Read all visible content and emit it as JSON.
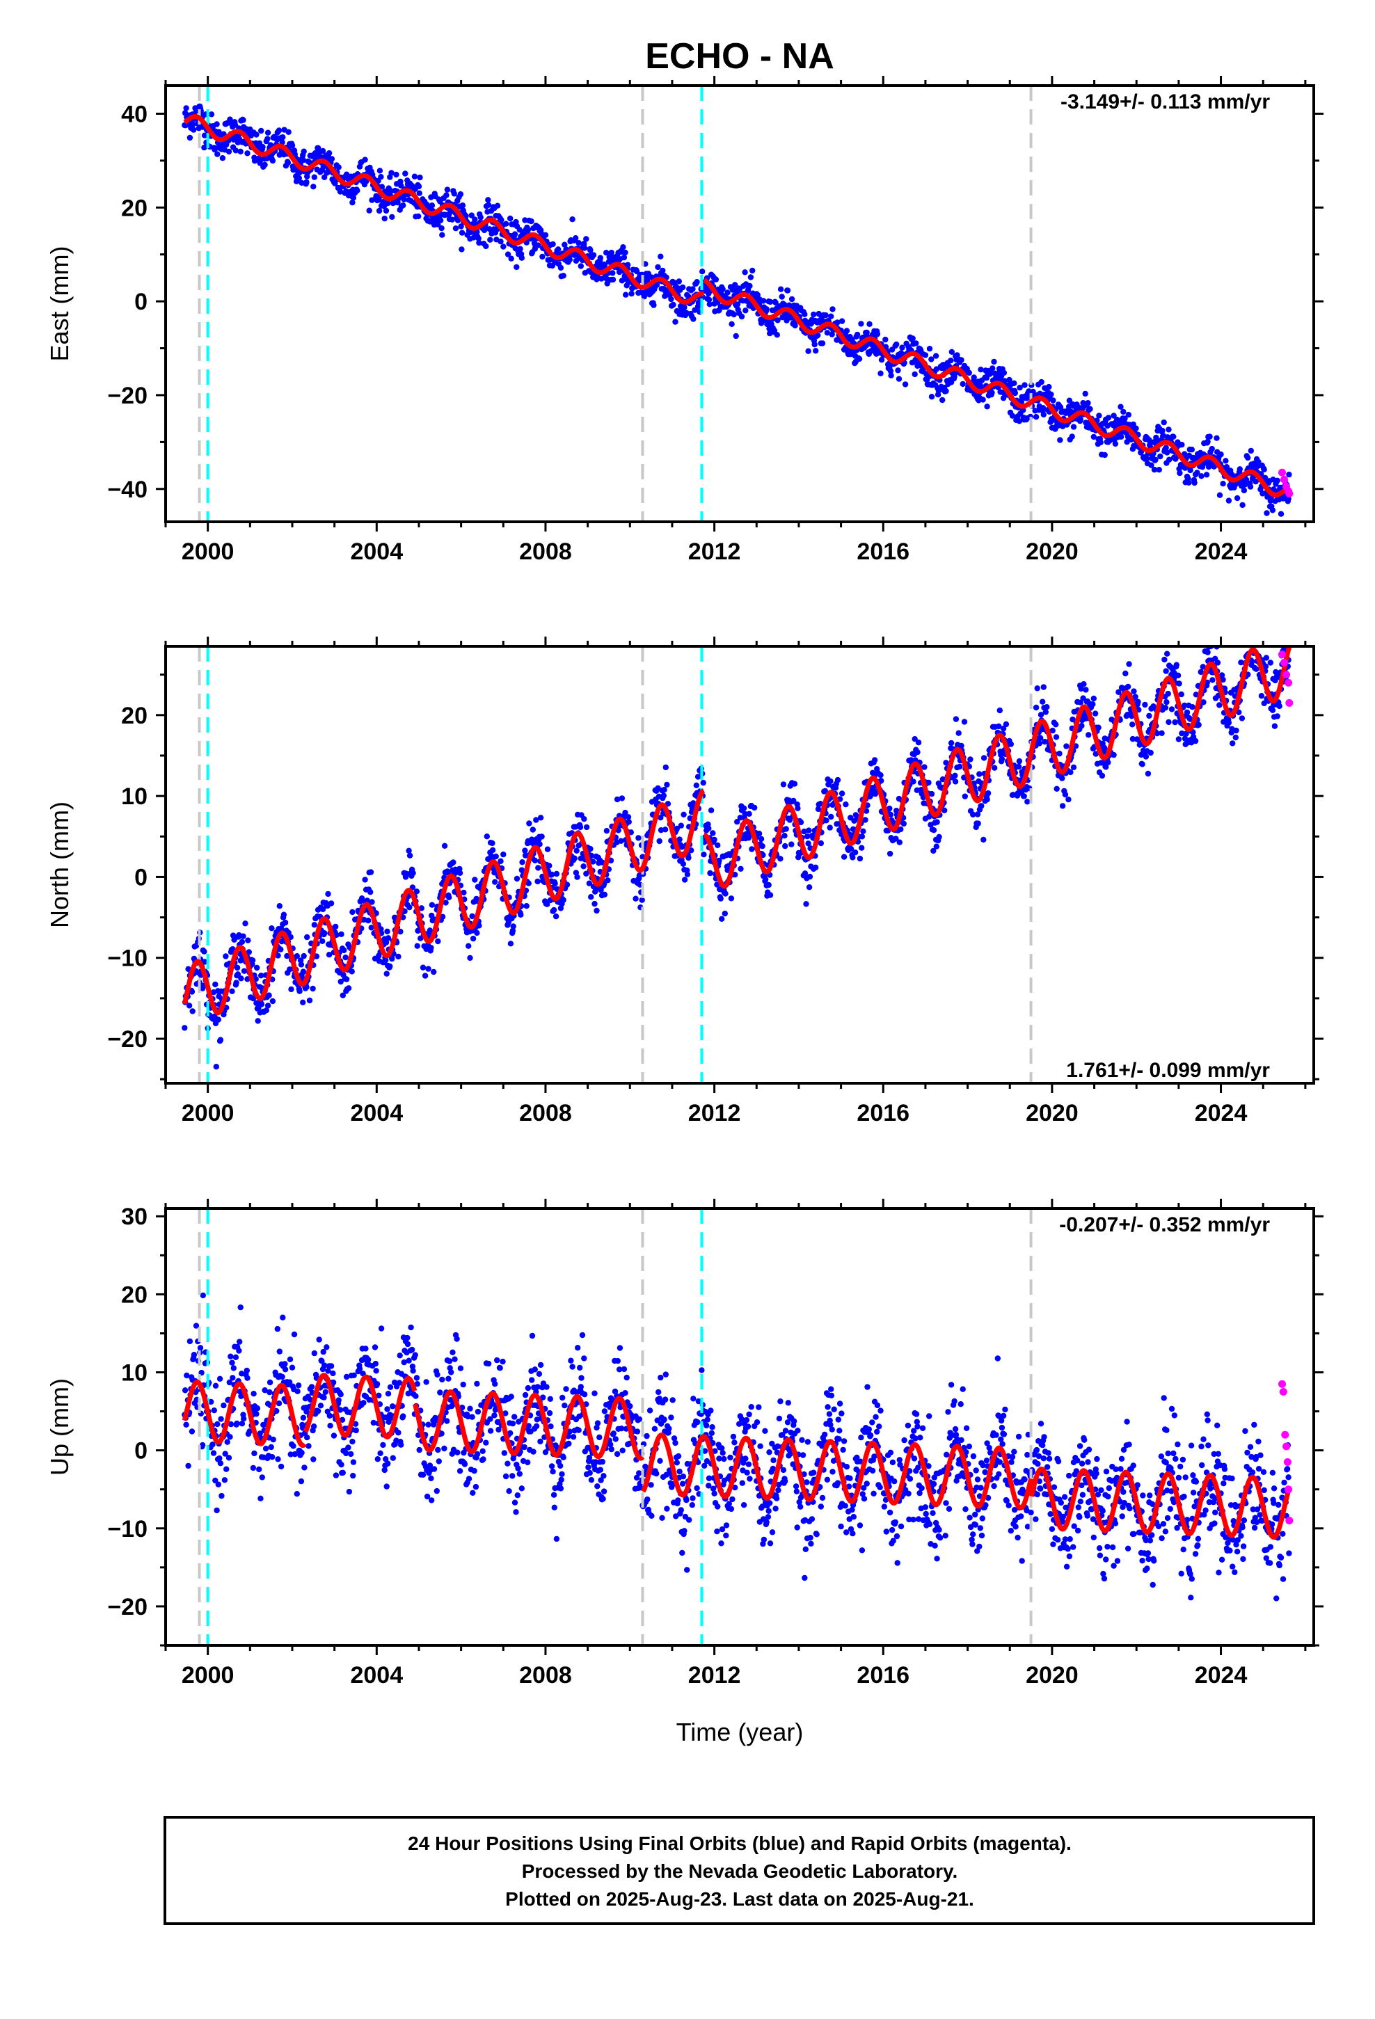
{
  "title": "ECHO - NA",
  "xlabel": "Time (year)",
  "footer": {
    "line1": "24 Hour Positions Using Final Orbits (blue) and Rapid Orbits (magenta).",
    "line2": "Processed by the Nevada Geodetic Laboratory.",
    "line3": "Plotted on 2025-Aug-23. Last data on 2025-Aug-21."
  },
  "colors": {
    "final": "#0000ff",
    "rapid": "#ff00ff",
    "model": "#ff0000",
    "equipment_change": "#c8c8c8",
    "earthquake": "#00ffff"
  },
  "chart_data": [
    {
      "type": "scatter",
      "ylabel": "East (mm)",
      "rate_text": "-3.149+/- 0.113 mm/yr",
      "xlim": [
        1999.0,
        2026.2
      ],
      "ylim": [
        -47,
        46
      ],
      "xticks": [
        2000,
        2004,
        2008,
        2012,
        2016,
        2020,
        2024
      ],
      "yticks": [
        40,
        20,
        0,
        -20,
        -40
      ],
      "trend": {
        "start_year": 1999.5,
        "start_value": 38.5,
        "rate": -3.149,
        "seasonal_amplitude": 1.6,
        "offsets": [
          {
            "year": 2011.75,
            "value": 3.0
          }
        ]
      },
      "scatter_spread": 2.0,
      "gray_lines": [
        1999.8,
        2010.3,
        2019.5
      ],
      "cyan_lines": [
        2000.0,
        2011.7
      ],
      "rapid_points": [
        [
          2025.45,
          -36.5
        ],
        [
          2025.5,
          -38.0
        ],
        [
          2025.55,
          -39.5
        ],
        [
          2025.6,
          -40.5
        ],
        [
          2025.62,
          -41.0
        ]
      ]
    },
    {
      "type": "scatter",
      "ylabel": "North (mm)",
      "rate_text": "1.761+/- 0.099 mm/yr",
      "xlim": [
        1999.0,
        2026.2
      ],
      "ylim": [
        -25.5,
        28.5
      ],
      "xticks": [
        2000,
        2004,
        2008,
        2012,
        2016,
        2020,
        2024
      ],
      "yticks": [
        20,
        10,
        0,
        -10,
        -20
      ],
      "trend": {
        "start_year": 1999.5,
        "start_value": -14.5,
        "rate": 1.761,
        "seasonal_amplitude": 3.6,
        "offsets": [
          {
            "year": 2011.75,
            "value": -5.5
          }
        ]
      },
      "scatter_spread": 1.8,
      "gray_lines": [
        1999.8,
        2010.3,
        2019.5
      ],
      "cyan_lines": [
        2000.0,
        2011.7
      ],
      "rapid_points": [
        [
          2025.45,
          27.5
        ],
        [
          2025.5,
          26.5
        ],
        [
          2025.55,
          25.0
        ],
        [
          2025.6,
          24.0
        ],
        [
          2025.62,
          21.5
        ]
      ]
    },
    {
      "type": "scatter",
      "ylabel": "Up (mm)",
      "rate_text": "-0.207+/- 0.352 mm/yr",
      "xlim": [
        1999.0,
        2026.2
      ],
      "ylim": [
        -25,
        31
      ],
      "xticks": [
        2000,
        2004,
        2008,
        2012,
        2016,
        2020,
        2024
      ],
      "yticks": [
        30,
        20,
        10,
        0,
        -10,
        -20
      ],
      "trend": {
        "start_year": 1999.5,
        "start_value": 5.0,
        "rate": -0.207,
        "seasonal_amplitude": 3.8,
        "offsets": [
          {
            "year": 2002.3,
            "value": 1.5
          },
          {
            "year": 2004.9,
            "value": -1.5
          },
          {
            "year": 2010.3,
            "value": -4.5
          },
          {
            "year": 2019.5,
            "value": -2.5
          }
        ]
      },
      "scatter_spread": 3.5,
      "gray_lines": [
        1999.8,
        2010.3,
        2019.5
      ],
      "cyan_lines": [
        2000.0,
        2011.7
      ],
      "rapid_points": [
        [
          2025.45,
          8.5
        ],
        [
          2025.48,
          7.5
        ],
        [
          2025.52,
          2.0
        ],
        [
          2025.55,
          0.5
        ],
        [
          2025.58,
          -1.5
        ],
        [
          2025.6,
          -5.0
        ],
        [
          2025.62,
          -9.0
        ]
      ]
    }
  ]
}
